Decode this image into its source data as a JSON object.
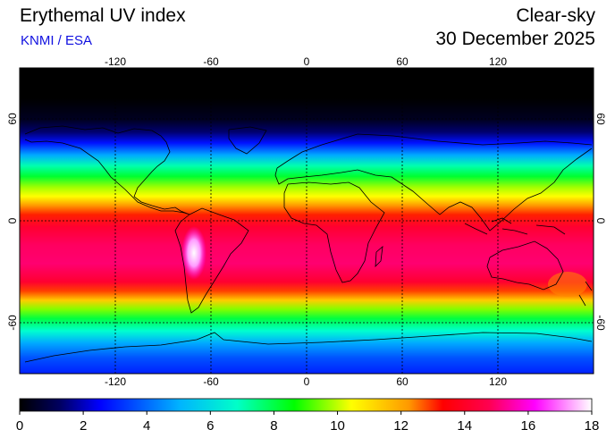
{
  "header": {
    "title": "Erythemal UV index",
    "credit": "KNMI / ESA",
    "condition": "Clear-sky",
    "date": "30 December 2025"
  },
  "map": {
    "projection": "equirectangular",
    "lon_range": [
      -180,
      180
    ],
    "lat_range": [
      -90,
      90
    ],
    "grid_lons": [
      -120,
      -60,
      0,
      60,
      120
    ],
    "grid_lats": [
      60,
      0,
      -60
    ],
    "lon_tick_labels": [
      "-120",
      "-60",
      "0",
      "60",
      "120"
    ],
    "lat_tick_labels": [
      "60",
      "0",
      "-60"
    ],
    "gridline_style": "dotted black",
    "coastlines": true
  },
  "colorbar": {
    "min": 0,
    "max": 18,
    "tick_labels": [
      "0",
      "2",
      "4",
      "6",
      "8",
      "10",
      "12",
      "14",
      "16",
      "18"
    ],
    "colors": [
      "#000000",
      "#000088",
      "#0000ff",
      "#00b4ff",
      "#00ffc8",
      "#00ff00",
      "#c8ff00",
      "#ffff00",
      "#ff9900",
      "#ff0000",
      "#ff0050",
      "#ff00a0",
      "#ff00ff",
      "#ff9bff",
      "#ffffff"
    ]
  },
  "colors": {
    "credit": "#1010e0",
    "background": "#ffffff"
  }
}
